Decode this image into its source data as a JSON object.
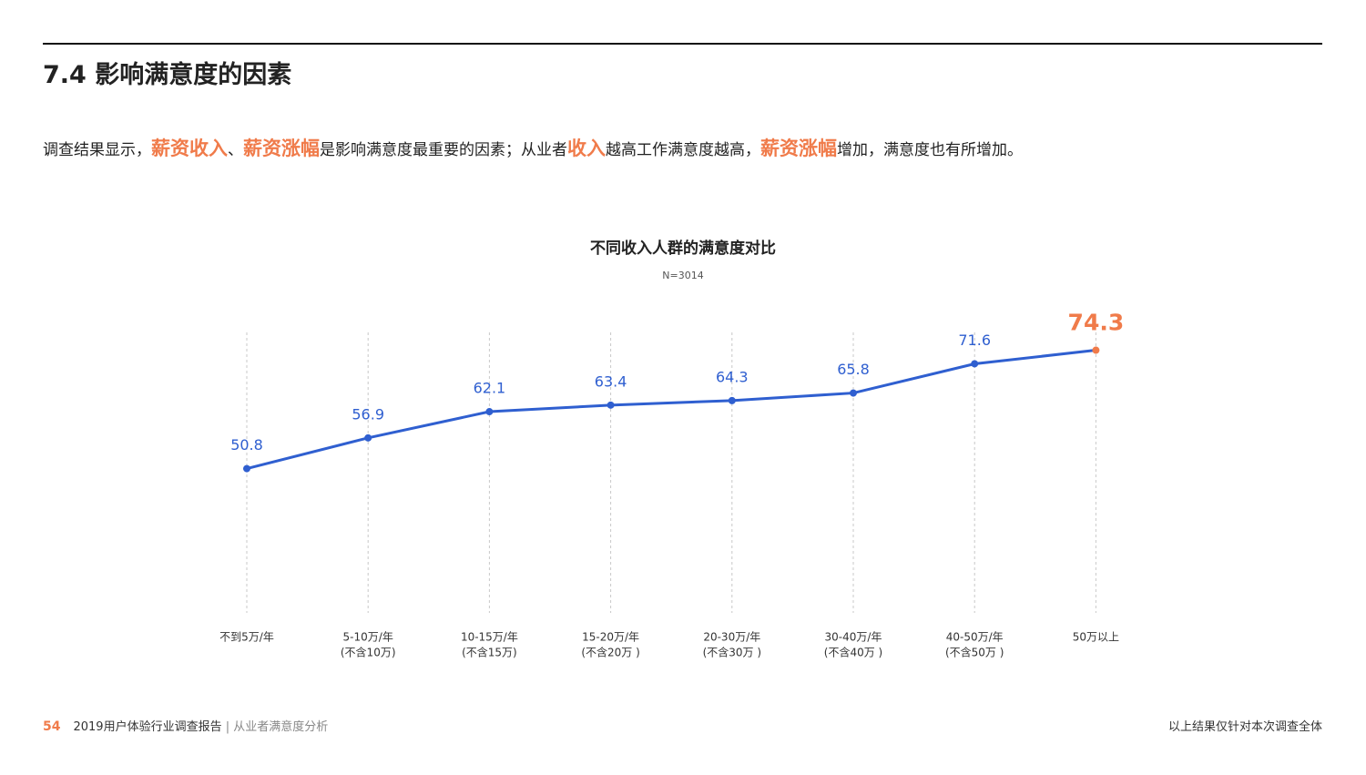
{
  "header": {
    "title": "7.4 影响满意度的因素"
  },
  "paragraph": [
    {
      "text": "调查结果显示，",
      "emphasis": false
    },
    {
      "text": "薪资收入",
      "emphasis": true
    },
    {
      "text": "、",
      "emphasis": false
    },
    {
      "text": "薪资涨幅",
      "emphasis": true
    },
    {
      "text": "是影响满意度最重要的因素；从业者",
      "emphasis": false
    },
    {
      "text": "收入",
      "emphasis": true
    },
    {
      "text": "越高工作满意度越高，",
      "emphasis": false
    },
    {
      "text": "薪资涨幅",
      "emphasis": true
    },
    {
      "text": "增加，满意度也有所增加。",
      "emphasis": false
    }
  ],
  "chart_data": {
    "type": "line",
    "title": "不同收入人群的满意度对比",
    "subtitle": "N=3014",
    "categories": [
      [
        "不到5万/年"
      ],
      [
        "5-10万/年",
        "(不含10万)"
      ],
      [
        "10-15万/年",
        "(不含15万)"
      ],
      [
        "15-20万/年",
        "(不含20万 )"
      ],
      [
        "20-30万/年",
        "(不含30万 )"
      ],
      [
        "30-40万/年",
        "(不含40万 )"
      ],
      [
        "40-50万/年",
        "(不含50万 )"
      ],
      [
        "50万以上"
      ]
    ],
    "values": [
      50.8,
      56.9,
      62.1,
      63.4,
      64.3,
      65.8,
      71.6,
      74.3
    ],
    "color": "#2f5fd0",
    "point_colors": [
      "#2f5fd0",
      "#2f5fd0",
      "#2f5fd0",
      "#2f5fd0",
      "#2f5fd0",
      "#2f5fd0",
      "#2f5fd0",
      "#f07b4a"
    ],
    "ylim": [
      20,
      80
    ],
    "grid": true
  },
  "footer": {
    "page": "54",
    "report": "2019用户体验行业调查报告",
    "separator": "|",
    "section": "从业者满意度分析",
    "note": "以上结果仅针对本次调查全体"
  }
}
